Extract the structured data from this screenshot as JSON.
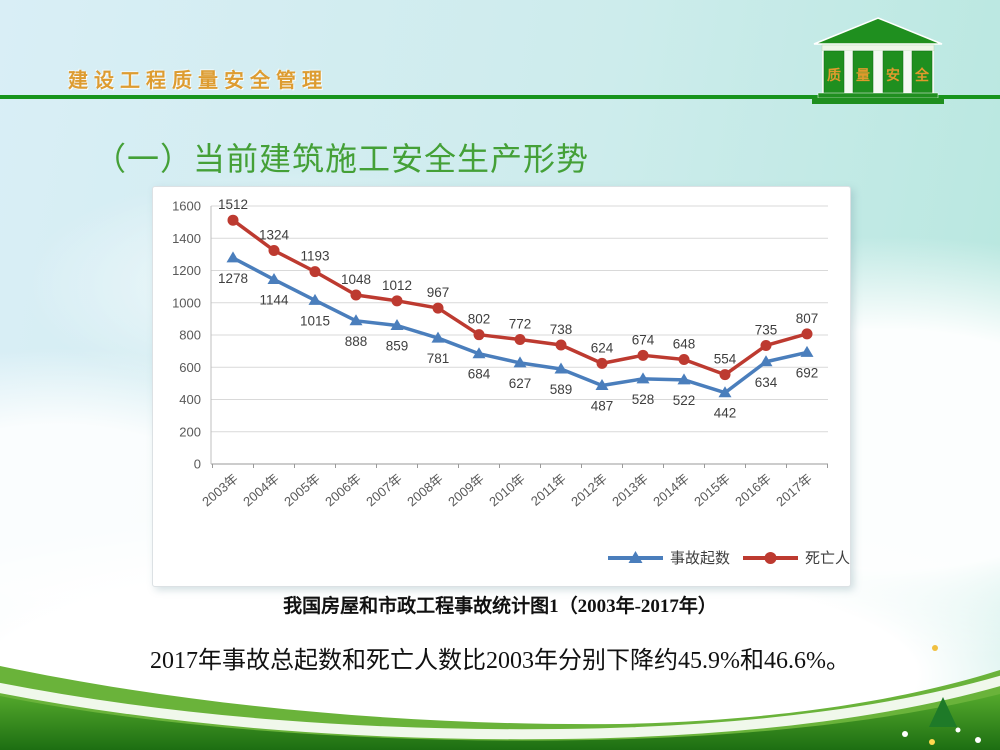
{
  "header": {
    "brand_title": "建设工程质量安全管理",
    "logo": {
      "chars": [
        "质",
        "量",
        "安",
        "全"
      ]
    }
  },
  "slide": {
    "section_title": "（一）当前建筑施工安全生产形势",
    "chart_caption": "我国房屋和市政工程事故统计图1（2003年-2017年）",
    "conclusion": "2017年事故总起数和死亡人数比2003年分别下降约45.9%和46.6%。"
  },
  "chart_data": {
    "type": "line",
    "title": "",
    "categories": [
      "2003年",
      "2004年",
      "2005年",
      "2006年",
      "2007年",
      "2008年",
      "2009年",
      "2010年",
      "2011年",
      "2012年",
      "2013年",
      "2014年",
      "2015年",
      "2016年",
      "2017年"
    ],
    "series": [
      {
        "key": "accidents",
        "name": "事故起数",
        "marker": "triangle",
        "color": "#4a7ebc",
        "label_below": true,
        "values": [
          1278,
          1144,
          1015,
          888,
          859,
          781,
          684,
          627,
          589,
          487,
          528,
          522,
          442,
          634,
          692
        ]
      },
      {
        "key": "deaths",
        "name": "死亡人数",
        "marker": "circle",
        "color": "#bd3a30",
        "label_below": false,
        "values": [
          1512,
          1324,
          1193,
          1048,
          1012,
          967,
          802,
          772,
          738,
          624,
          674,
          648,
          554,
          735,
          807
        ]
      }
    ],
    "ylim": [
      0,
      1600
    ],
    "ytick_step": 200,
    "grid": true,
    "data_labels": true,
    "legend_position": "bottom-right",
    "xlabel": "",
    "ylabel": ""
  },
  "colors": {
    "header_rule": "#17941c",
    "brand_title": "#dd9c31",
    "section_title": "#44a037",
    "nav_triangle": "#1e7a28"
  }
}
